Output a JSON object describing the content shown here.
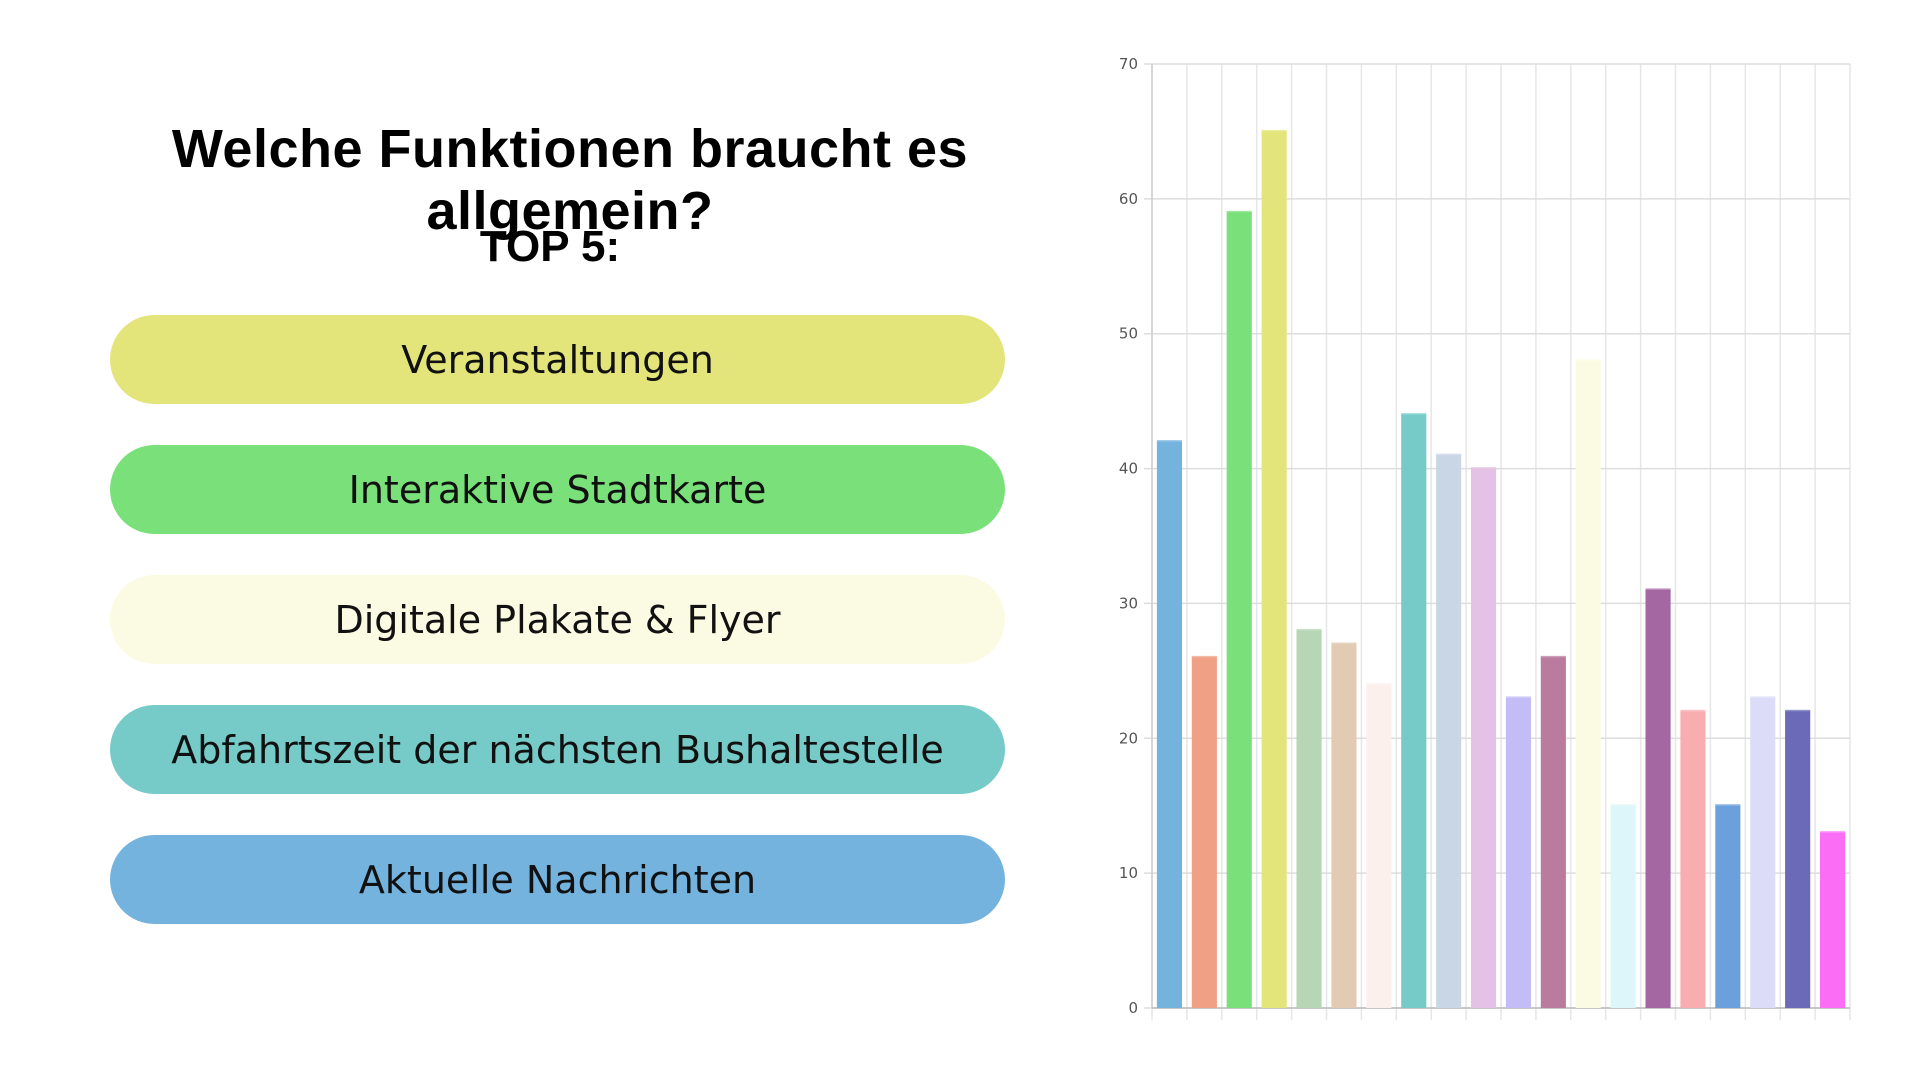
{
  "title": "Welche Funktionen braucht es allgemein?",
  "subtitle": "TOP 5:",
  "top_items": [
    {
      "label": "Veranstaltungen",
      "color": "#e3e57a"
    },
    {
      "label": "Interaktive Stadtkarte",
      "color": "#79e07a"
    },
    {
      "label": "Digitale Plakate & Flyer",
      "color": "#fbfbe3"
    },
    {
      "label": "Abfahrtszeit der nächsten Bushaltestelle",
      "color": "#76cbc8"
    },
    {
      "label": "Aktuelle Nachrichten",
      "color": "#74b3de"
    }
  ],
  "chart_data": {
    "type": "bar",
    "title": "",
    "xlabel": "",
    "ylabel": "",
    "ylim": [
      0,
      70
    ],
    "yticks": [
      0,
      10,
      20,
      30,
      40,
      50,
      60,
      70
    ],
    "grid": true,
    "values": [
      42,
      26,
      59,
      65,
      28,
      27,
      24,
      44,
      41,
      40,
      23,
      26,
      48,
      15,
      31,
      22,
      15,
      23,
      22,
      13
    ],
    "colors": [
      "#74b3de",
      "#f0a084",
      "#79e07a",
      "#e3e57a",
      "#b7d6b5",
      "#e2cbb3",
      "#fbf0ec",
      "#76cbc8",
      "#c8d6e5",
      "#e4c1e6",
      "#c3bdf5",
      "#b97c9e",
      "#fbfbe3",
      "#ddf6f9",
      "#a467a2",
      "#f8aeb0",
      "#6ba0dd",
      "#dcdcf9",
      "#6a6ab7",
      "#fa6ef5"
    ]
  }
}
